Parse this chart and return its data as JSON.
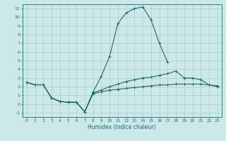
{
  "xlabel": "Humidex (Indice chaleur)",
  "bg_color": "#cce8e8",
  "grid_color": "#aacccc",
  "line_color": "#1a6b6b",
  "xlim": [
    -0.5,
    23.5
  ],
  "ylim": [
    -1.5,
    11.5
  ],
  "xticks": [
    0,
    1,
    2,
    3,
    4,
    5,
    6,
    7,
    8,
    9,
    10,
    11,
    12,
    13,
    14,
    15,
    16,
    17,
    18,
    19,
    20,
    21,
    22,
    23
  ],
  "yticks": [
    -1,
    0,
    1,
    2,
    3,
    4,
    5,
    6,
    7,
    8,
    9,
    10,
    11
  ],
  "series": [
    {
      "x": [
        0,
        1,
        2,
        3,
        4,
        5,
        6,
        7,
        8,
        9,
        10,
        11,
        12,
        13,
        14,
        15,
        16,
        17
      ],
      "y": [
        2.5,
        2.2,
        2.2,
        0.7,
        0.3,
        0.2,
        0.2,
        -0.9,
        1.4,
        3.2,
        5.5,
        9.3,
        10.5,
        11.0,
        11.2,
        9.7,
        7.0,
        4.8
      ]
    },
    {
      "x": [
        0,
        1,
        2,
        3,
        4,
        5,
        6,
        7,
        8,
        9,
        10,
        11,
        12,
        13,
        14,
        15,
        16,
        17,
        18,
        19,
        20,
        21,
        22,
        23
      ],
      "y": [
        2.5,
        2.2,
        2.2,
        0.7,
        0.3,
        0.2,
        0.2,
        -0.9,
        1.3,
        1.6,
        2.0,
        2.3,
        2.6,
        2.8,
        3.0,
        3.1,
        3.3,
        3.5,
        3.8,
        3.0,
        3.0,
        2.8,
        2.2,
        2.0
      ]
    },
    {
      "x": [
        0,
        1,
        2,
        3,
        4,
        5,
        6,
        7,
        8,
        9,
        10,
        11,
        12,
        13,
        14,
        15,
        16,
        17,
        18,
        19,
        20,
        21,
        22,
        23
      ],
      "y": [
        2.5,
        2.2,
        2.2,
        0.7,
        0.3,
        0.2,
        0.2,
        -0.9,
        1.2,
        1.4,
        1.6,
        1.7,
        1.8,
        1.9,
        2.0,
        2.1,
        2.2,
        2.2,
        2.3,
        2.3,
        2.3,
        2.3,
        2.2,
        2.1
      ]
    }
  ]
}
